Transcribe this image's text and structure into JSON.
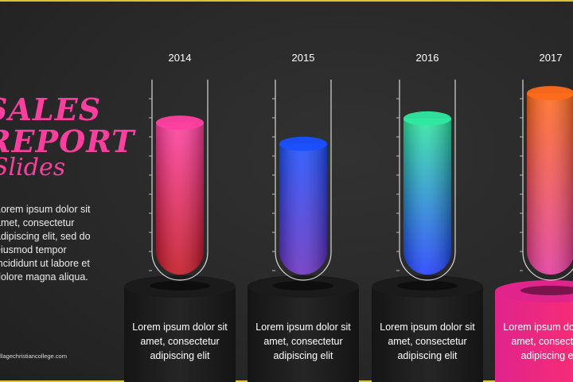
{
  "slide": {
    "title": "SALES\nREPORT",
    "subtitle": "Slides",
    "body": "Lorem ipsum dolor sit amet, consectetur adipiscing elit, sed do eiusmod tempor incididunt ut labore et dolore magna aliqua.",
    "website": "allagechristiancollege.com"
  },
  "chart_data": {
    "type": "bar",
    "categories": [
      "2014",
      "2015",
      "2016",
      "2017"
    ],
    "values": [
      72,
      62,
      74,
      86
    ],
    "ylim": [
      0,
      100
    ],
    "descriptions": [
      "Lorem ipsum dolor sit amet, consectetur adipiscing elit",
      "Lorem ipsum dolor sit amet, consectetur adipiscing elit",
      "Lorem ipsum dolor sit amet, consectetur adipiscing elit",
      "Lorem ipsum dolor sit amet, consectetur adipiscing elit"
    ],
    "colors": [
      [
        "#ff3fa0",
        "#c2141f"
      ],
      [
        "#1a4fff",
        "#6a2fc0"
      ],
      [
        "#2ee8a0",
        "#1f3cff"
      ],
      [
        "#ff6a1a",
        "#e2389c"
      ]
    ],
    "highlight_index": 3,
    "highlight_color": [
      "#e0248c",
      "#ff2f6e"
    ]
  }
}
